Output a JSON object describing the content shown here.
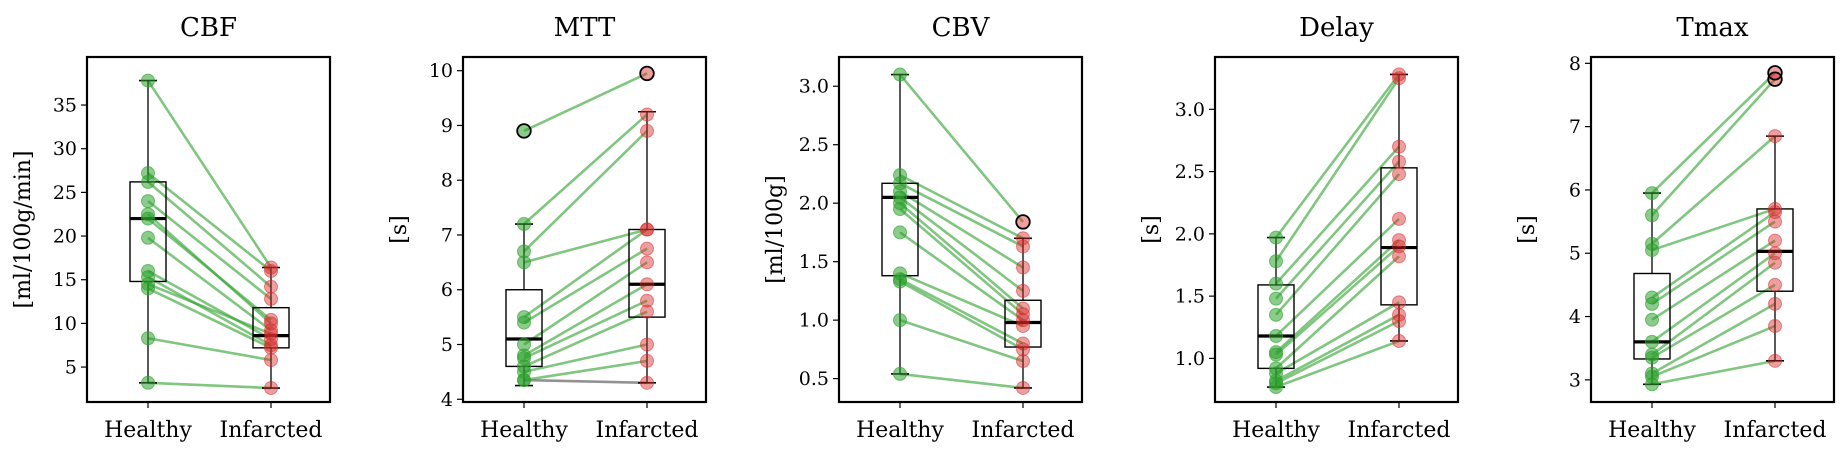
{
  "figure": {
    "categories": [
      "Healthy",
      "Infarcted"
    ],
    "healthy_color": "#2ca02c",
    "infarcted_color": "#d62728",
    "line_color": "#2ca02c",
    "flat_line_color": "#7f7f7f"
  },
  "chart_data": [
    {
      "type": "box",
      "title": "CBF",
      "ylabel": "[ml/100g/min]",
      "ylim": [
        1,
        40.5
      ],
      "yticks": [
        5,
        10,
        15,
        20,
        25,
        30,
        35
      ],
      "box": [
        {
          "q1": 14.8,
          "median": 22.0,
          "q3": 26.2,
          "whislo": 3.2,
          "whishi": 37.8
        },
        {
          "q1": 7.2,
          "median": 8.6,
          "q3": 11.8,
          "whislo": 2.6,
          "whishi": 16.4
        }
      ],
      "pairs": [
        [
          37.8,
          16.4
        ],
        [
          27.2,
          16.0
        ],
        [
          26.2,
          14.2
        ],
        [
          24.0,
          12.8
        ],
        [
          22.5,
          10.0
        ],
        [
          22.0,
          10.4
        ],
        [
          19.8,
          9.2
        ],
        [
          16.0,
          8.2
        ],
        [
          15.3,
          7.5
        ],
        [
          14.5,
          8.8
        ],
        [
          14.0,
          7.2
        ],
        [
          8.3,
          5.8
        ],
        [
          3.2,
          2.6
        ]
      ],
      "outliers": [
        [],
        []
      ]
    },
    {
      "type": "box",
      "title": "MTT",
      "ylabel": "[s]",
      "ylim": [
        3.95,
        10.25
      ],
      "yticks": [
        4,
        5,
        6,
        7,
        8,
        9,
        10
      ],
      "box": [
        {
          "q1": 4.6,
          "median": 5.1,
          "q3": 6.0,
          "whislo": 4.25,
          "whishi": 7.2
        },
        {
          "q1": 5.5,
          "median": 6.1,
          "q3": 7.1,
          "whislo": 4.3,
          "whishi": 9.25
        }
      ],
      "pairs": [
        [
          8.9,
          9.95
        ],
        [
          7.2,
          9.2
        ],
        [
          6.7,
          8.9
        ],
        [
          6.5,
          7.1
        ],
        [
          5.5,
          7.1
        ],
        [
          5.4,
          6.75
        ],
        [
          5.0,
          6.5
        ],
        [
          4.8,
          6.1
        ],
        [
          4.75,
          5.8
        ],
        [
          4.6,
          5.6
        ],
        [
          4.5,
          5.0
        ],
        [
          4.35,
          4.7
        ],
        [
          4.35,
          4.3
        ]
      ],
      "outliers": [
        [
          8.9
        ],
        [
          9.95
        ]
      ]
    },
    {
      "type": "box",
      "title": "CBV",
      "ylabel": "[ml/100g]",
      "ylim": [
        0.3,
        3.25
      ],
      "yticks": [
        0.5,
        1.0,
        1.5,
        2.0,
        2.5,
        3.0
      ],
      "box": [
        {
          "q1": 1.38,
          "median": 2.05,
          "q3": 2.17,
          "whislo": 0.54,
          "whishi": 3.1
        },
        {
          "q1": 0.77,
          "median": 0.98,
          "q3": 1.17,
          "whislo": 0.42,
          "whishi": 1.7
        }
      ],
      "pairs": [
        [
          3.1,
          1.84
        ],
        [
          2.24,
          1.7
        ],
        [
          2.17,
          1.63
        ],
        [
          2.1,
          1.45
        ],
        [
          2.05,
          1.25
        ],
        [
          2.0,
          1.1
        ],
        [
          1.95,
          1.05
        ],
        [
          1.75,
          1.0
        ],
        [
          1.4,
          0.95
        ],
        [
          1.35,
          0.8
        ],
        [
          1.33,
          0.75
        ],
        [
          1.0,
          0.65
        ],
        [
          0.54,
          0.42
        ]
      ],
      "outliers": [
        [],
        [
          1.84
        ]
      ]
    },
    {
      "type": "box",
      "title": "Delay",
      "ylabel": "[s]",
      "ylim": [
        0.65,
        3.42
      ],
      "yticks": [
        1.0,
        1.5,
        2.0,
        2.5,
        3.0
      ],
      "box": [
        {
          "q1": 0.92,
          "median": 1.18,
          "q3": 1.59,
          "whislo": 0.77,
          "whishi": 1.97
        },
        {
          "q1": 1.43,
          "median": 1.89,
          "q3": 2.53,
          "whislo": 1.14,
          "whishi": 3.28
        }
      ],
      "pairs": [
        [
          1.97,
          3.28
        ],
        [
          1.78,
          3.25
        ],
        [
          1.6,
          2.7
        ],
        [
          1.48,
          2.58
        ],
        [
          1.35,
          2.48
        ],
        [
          1.18,
          2.12
        ],
        [
          1.05,
          1.95
        ],
        [
          1.03,
          1.9
        ],
        [
          0.92,
          1.82
        ],
        [
          0.88,
          1.45
        ],
        [
          0.82,
          1.35
        ],
        [
          0.8,
          1.3
        ],
        [
          0.77,
          1.14
        ]
      ],
      "outliers": [
        [],
        []
      ]
    },
    {
      "type": "box",
      "title": "Tmax",
      "ylabel": "[s]",
      "ylim": [
        2.65,
        8.1
      ],
      "yticks": [
        3,
        4,
        5,
        6,
        7,
        8
      ],
      "box": [
        {
          "q1": 3.33,
          "median": 3.6,
          "q3": 4.68,
          "whislo": 2.93,
          "whishi": 5.95
        },
        {
          "q1": 4.4,
          "median": 5.03,
          "q3": 5.7,
          "whislo": 3.3,
          "whishi": 6.85
        }
      ],
      "pairs": [
        [
          5.95,
          7.85
        ],
        [
          5.6,
          7.75
        ],
        [
          5.15,
          6.85
        ],
        [
          5.05,
          5.7
        ],
        [
          4.3,
          5.65
        ],
        [
          4.2,
          5.5
        ],
        [
          3.95,
          5.2
        ],
        [
          3.6,
          5.0
        ],
        [
          3.4,
          4.85
        ],
        [
          3.35,
          4.5
        ],
        [
          3.1,
          4.2
        ],
        [
          3.05,
          3.85
        ],
        [
          2.93,
          3.3
        ]
      ],
      "outliers": [
        [],
        [
          7.85,
          7.75
        ]
      ]
    }
  ]
}
